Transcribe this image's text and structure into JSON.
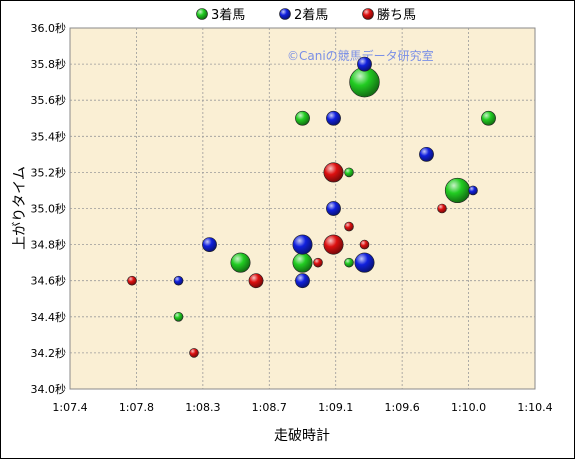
{
  "chart_data": {
    "type": "scatter",
    "title": "",
    "xlabel": "走破時計",
    "ylabel": "上がりタイム",
    "xlim": [
      67.4,
      70.4
    ],
    "ylim": [
      34.0,
      36.0
    ],
    "x_ticks": [
      "1:07.4",
      "1:07.8",
      "1:08.3",
      "1:08.7",
      "1:09.1",
      "1:09.6",
      "1:10.0",
      "1:10.4"
    ],
    "y_ticks": [
      "34.0秒",
      "34.2秒",
      "34.4秒",
      "34.6秒",
      "34.8秒",
      "35.0秒",
      "35.2秒",
      "35.4秒",
      "35.6秒",
      "35.8秒",
      "36.0秒"
    ],
    "grid": true,
    "legend_position": "top",
    "watermark": "©Caniの競馬データ研究室",
    "series": [
      {
        "name": "3着馬",
        "color": "#22cc22",
        "points": [
          {
            "x": 68.5,
            "y": 34.7,
            "size": 3
          },
          {
            "x": 68.1,
            "y": 34.4,
            "size": 1
          },
          {
            "x": 68.9,
            "y": 35.5,
            "size": 2
          },
          {
            "x": 68.9,
            "y": 34.7,
            "size": 3
          },
          {
            "x": 69.3,
            "y": 35.7,
            "size": 5
          },
          {
            "x": 69.2,
            "y": 35.2,
            "size": 1
          },
          {
            "x": 69.2,
            "y": 34.7,
            "size": 1
          },
          {
            "x": 69.9,
            "y": 35.1,
            "size": 4
          },
          {
            "x": 70.1,
            "y": 35.5,
            "size": 2
          }
        ]
      },
      {
        "name": "2着馬",
        "color": "#1020dd",
        "points": [
          {
            "x": 68.1,
            "y": 34.6,
            "size": 1
          },
          {
            "x": 68.3,
            "y": 34.8,
            "size": 2
          },
          {
            "x": 68.9,
            "y": 34.8,
            "size": 3
          },
          {
            "x": 68.9,
            "y": 34.6,
            "size": 2
          },
          {
            "x": 69.1,
            "y": 35.5,
            "size": 2
          },
          {
            "x": 69.1,
            "y": 35.0,
            "size": 2
          },
          {
            "x": 69.3,
            "y": 35.8,
            "size": 2
          },
          {
            "x": 69.3,
            "y": 34.7,
            "size": 3
          },
          {
            "x": 69.7,
            "y": 35.3,
            "size": 2
          },
          {
            "x": 70.0,
            "y": 35.1,
            "size": 1
          }
        ]
      },
      {
        "name": "勝ち馬",
        "color": "#dd1010",
        "points": [
          {
            "x": 67.8,
            "y": 34.6,
            "size": 1
          },
          {
            "x": 68.2,
            "y": 34.2,
            "size": 1
          },
          {
            "x": 68.6,
            "y": 34.6,
            "size": 2
          },
          {
            "x": 69.0,
            "y": 34.7,
            "size": 1
          },
          {
            "x": 69.1,
            "y": 35.2,
            "size": 3
          },
          {
            "x": 69.1,
            "y": 34.8,
            "size": 3
          },
          {
            "x": 69.2,
            "y": 34.9,
            "size": 1
          },
          {
            "x": 69.3,
            "y": 34.8,
            "size": 1
          },
          {
            "x": 69.8,
            "y": 35.0,
            "size": 1
          }
        ]
      }
    ]
  }
}
